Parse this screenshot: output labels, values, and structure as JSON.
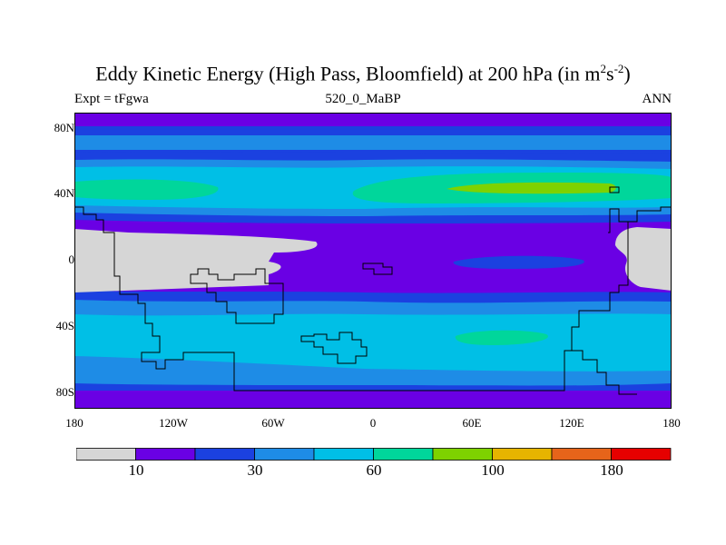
{
  "title": {
    "main": "Eddy Kinetic Energy (High Pass, Bloomfield) at 200 hPa (in m",
    "sup1": "2",
    "mid": "s",
    "sup2": "-2",
    "end": ")"
  },
  "subtitle_left": "Expt = tFgwa",
  "subtitle_center": "520_0_MaBP",
  "subtitle_right": "ANN",
  "axes": {
    "lat_ticks": [
      "80N",
      "40N",
      "0",
      "40S",
      "80S"
    ],
    "lon_ticks": [
      "180",
      "120W",
      "60W",
      "0",
      "60E",
      "120E",
      "180"
    ]
  },
  "colors": {
    "land": "#d6d6d6",
    "levels": [
      "#d6d6d6",
      "#6a00e4",
      "#1b41e0",
      "#1e8ce6",
      "#00bfe6",
      "#00d69b",
      "#7ed200",
      "#e6b400",
      "#e6641a",
      "#e60000"
    ]
  },
  "colorbar": {
    "labels": [
      {
        "text": "10",
        "index": 1
      },
      {
        "text": "30",
        "index": 3
      },
      {
        "text": "60",
        "index": 5
      },
      {
        "text": "100",
        "index": 7
      },
      {
        "text": "180",
        "index": 9
      }
    ]
  }
}
